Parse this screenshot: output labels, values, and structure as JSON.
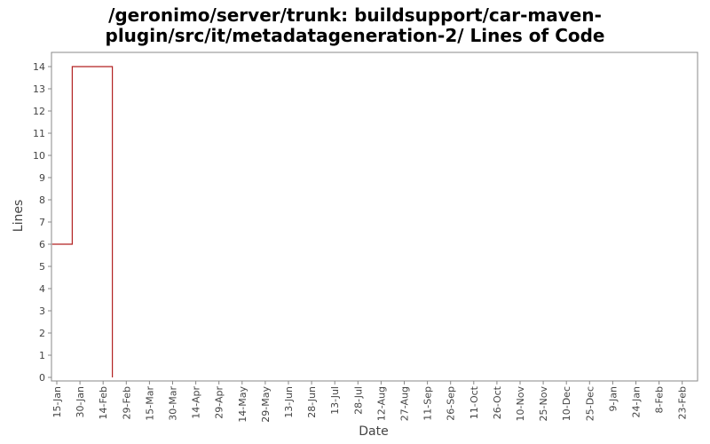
{
  "chart_data": {
    "type": "line",
    "title_lines": [
      "/geronimo/server/trunk: buildsupport/car-maven-",
      "plugin/src/it/metadatageneration-2/ Lines of Code"
    ],
    "xlabel": "Date",
    "ylabel": "Lines",
    "ylim": [
      0,
      14
    ],
    "y_ticks": [
      "0",
      "1",
      "2",
      "3",
      "4",
      "5",
      "6",
      "7",
      "8",
      "9",
      "10",
      "11",
      "12",
      "13",
      "14"
    ],
    "x_ticks": [
      "15-Jan",
      "30-Jan",
      "14-Feb",
      "29-Feb",
      "15-Mar",
      "30-Mar",
      "14-Apr",
      "29-Apr",
      "14-May",
      "29-May",
      "13-Jun",
      "28-Jun",
      "13-Jul",
      "28-Jul",
      "12-Aug",
      "27-Aug",
      "11-Sep",
      "26-Sep",
      "11-Oct",
      "26-Oct",
      "10-Nov",
      "25-Nov",
      "10-Dec",
      "25-Dec",
      "9-Jan",
      "24-Jan",
      "8-Feb",
      "23-Feb"
    ],
    "grid": false,
    "step": true,
    "series": [
      {
        "color": "#b22222",
        "points": [
          {
            "x": "12-Jan",
            "y": 6
          },
          {
            "x": "25-Jan",
            "y": 6
          },
          {
            "x": "25-Jan",
            "y": 14
          },
          {
            "x": "20-Feb",
            "y": 14
          },
          {
            "x": "20-Feb",
            "y": 0
          }
        ]
      }
    ]
  }
}
